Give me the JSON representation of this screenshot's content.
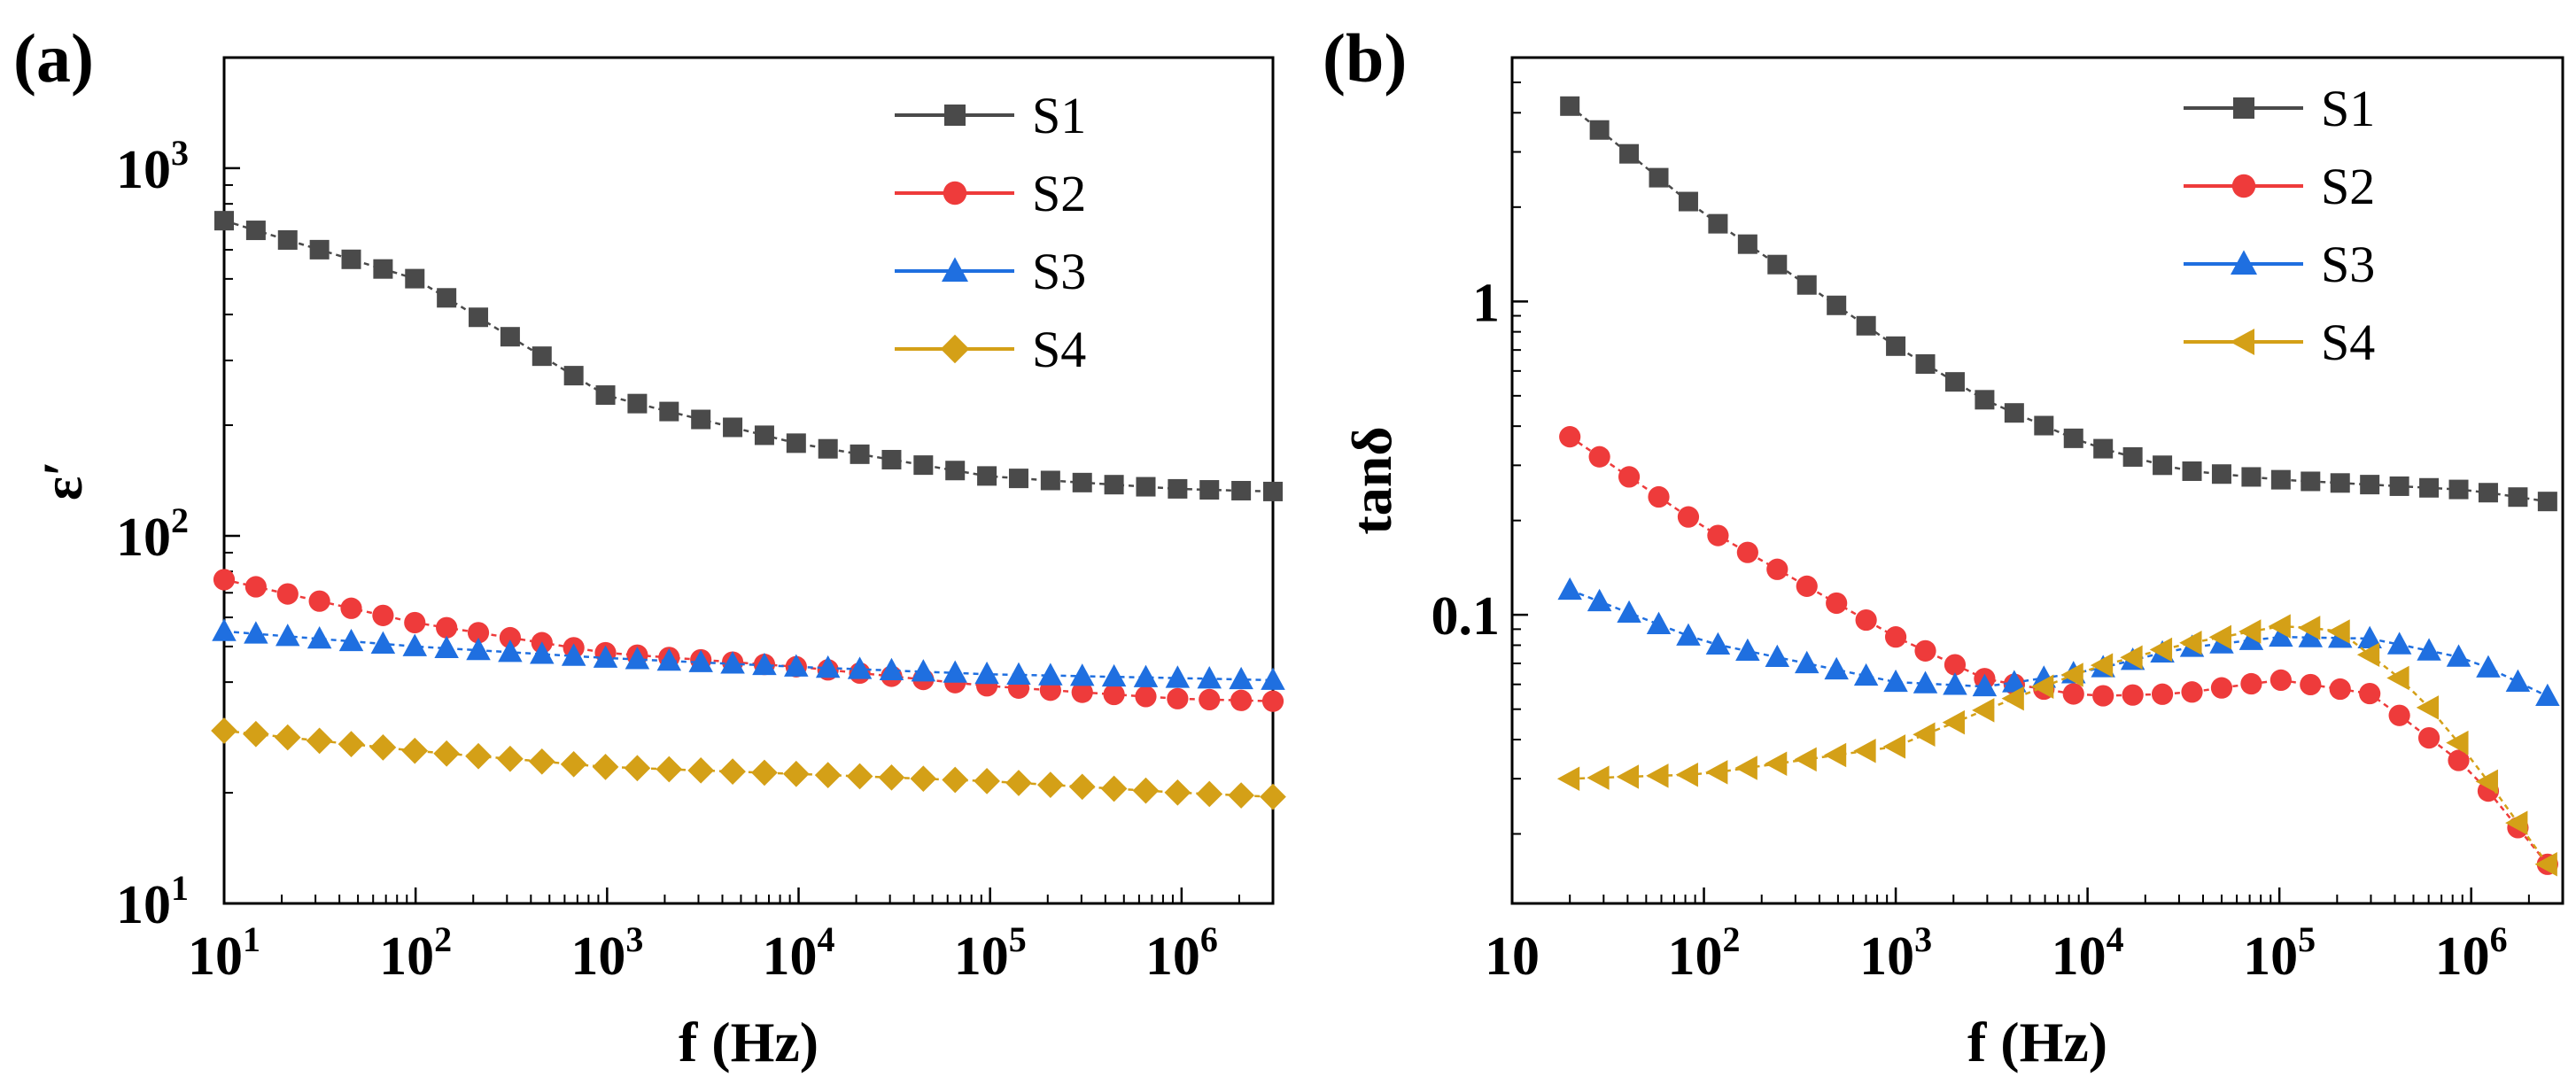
{
  "colors": {
    "S1": "#4a4a4a",
    "S2": "#ee3b3b",
    "S3": "#1f6fe0",
    "S4": "#d4a017"
  },
  "panels": {
    "a": {
      "label": "(a)"
    },
    "b": {
      "label": "(b)"
    }
  },
  "chart_data": [
    {
      "id": "a",
      "type": "line",
      "title": "(a)",
      "xlabel": "f (Hz)",
      "ylabel": "ε′",
      "xscale": "log",
      "yscale": "log",
      "xlim": [
        10,
        3000000
      ],
      "ylim": [
        10,
        2000
      ],
      "xticks": [
        {
          "value": 10,
          "base": "10",
          "exp": "1"
        },
        {
          "value": 100,
          "base": "10",
          "exp": "2"
        },
        {
          "value": 1000,
          "base": "10",
          "exp": "3"
        },
        {
          "value": 10000,
          "base": "10",
          "exp": "4"
        },
        {
          "value": 100000,
          "base": "10",
          "exp": "5"
        },
        {
          "value": 1000000,
          "base": "10",
          "exp": "6"
        }
      ],
      "yticks": [
        {
          "value": 10,
          "base": "10",
          "exp": "1"
        },
        {
          "value": 100,
          "base": "10",
          "exp": "2"
        },
        {
          "value": 1000,
          "base": "10",
          "exp": "3"
        }
      ],
      "legend_position": "top-right",
      "points_per_series": 34,
      "series": [
        {
          "name": "S1",
          "marker": "square",
          "points": [
            [
              10,
              720
            ],
            [
              100,
              500
            ],
            [
              1000,
              240
            ],
            [
              10000,
              178
            ],
            [
              100000,
              145
            ],
            [
              1000000,
              134
            ],
            [
              3000000,
              132
            ]
          ]
        },
        {
          "name": "S2",
          "marker": "circle",
          "points": [
            [
              10,
              76
            ],
            [
              100,
              58
            ],
            [
              1000,
              48
            ],
            [
              10000,
              44
            ],
            [
              100000,
              39
            ],
            [
              1000000,
              36
            ],
            [
              3000000,
              35.5
            ]
          ]
        },
        {
          "name": "S3",
          "marker": "triangle-up",
          "points": [
            [
              10,
              55
            ],
            [
              100,
              50
            ],
            [
              1000,
              46.5
            ],
            [
              10000,
              44
            ],
            [
              100000,
              42
            ],
            [
              1000000,
              41
            ],
            [
              3000000,
              40.5
            ]
          ]
        },
        {
          "name": "S4",
          "marker": "diamond",
          "points": [
            [
              10,
              29.5
            ],
            [
              100,
              26
            ],
            [
              1000,
              23.5
            ],
            [
              10000,
              22.5
            ],
            [
              100000,
              21.5
            ],
            [
              1000000,
              20
            ],
            [
              3000000,
              19.5
            ]
          ]
        }
      ]
    },
    {
      "id": "b",
      "type": "line",
      "title": "(b)",
      "xlabel": "f (Hz)",
      "ylabel": "tanδ",
      "xscale": "log",
      "yscale": "log",
      "xlim": [
        10,
        3000000
      ],
      "ylim": [
        0.012,
        6
      ],
      "xticks": [
        {
          "value": 10,
          "base": "10",
          "exp": ""
        },
        {
          "value": 100,
          "base": "10",
          "exp": "2"
        },
        {
          "value": 1000,
          "base": "10",
          "exp": "3"
        },
        {
          "value": 10000,
          "base": "10",
          "exp": "4"
        },
        {
          "value": 100000,
          "base": "10",
          "exp": "5"
        },
        {
          "value": 1000000,
          "base": "10",
          "exp": "6"
        }
      ],
      "yticks": [
        {
          "value": 0.1,
          "text": "0.1"
        },
        {
          "value": 1,
          "text": "1"
        }
      ],
      "legend_position": "top-right",
      "points_per_series": 34,
      "series": [
        {
          "name": "S1",
          "marker": "square",
          "points": [
            [
              20,
              4.2
            ],
            [
              100,
              1.9
            ],
            [
              1000,
              0.72
            ],
            [
              3000,
              0.48
            ],
            [
              10000,
              0.35
            ],
            [
              30000,
              0.29
            ],
            [
              100000,
              0.27
            ],
            [
              1000000,
              0.25
            ],
            [
              2500000,
              0.23
            ]
          ]
        },
        {
          "name": "S2",
          "marker": "circle",
          "points": [
            [
              20,
              0.37
            ],
            [
              100,
              0.19
            ],
            [
              1000,
              0.085
            ],
            [
              3000,
              0.062
            ],
            [
              10000,
              0.055
            ],
            [
              30000,
              0.056
            ],
            [
              100000,
              0.062
            ],
            [
              300000,
              0.056
            ],
            [
              1000000,
              0.032
            ],
            [
              2500000,
              0.016
            ]
          ]
        },
        {
          "name": "S3",
          "marker": "triangle-up",
          "points": [
            [
              20,
              0.12
            ],
            [
              100,
              0.082
            ],
            [
              1000,
              0.061
            ],
            [
              3000,
              0.059
            ],
            [
              10000,
              0.066
            ],
            [
              30000,
              0.078
            ],
            [
              100000,
              0.085
            ],
            [
              300000,
              0.084
            ],
            [
              1000000,
              0.072
            ],
            [
              2500000,
              0.055
            ]
          ]
        },
        {
          "name": "S4",
          "marker": "triangle-left",
          "points": [
            [
              20,
              0.03
            ],
            [
              100,
              0.031
            ],
            [
              1000,
              0.038
            ],
            [
              3000,
              0.05
            ],
            [
              10000,
              0.067
            ],
            [
              30000,
              0.08
            ],
            [
              100000,
              0.092
            ],
            [
              200000,
              0.09
            ],
            [
              500000,
              0.058
            ],
            [
              1000000,
              0.035
            ],
            [
              2500000,
              0.016
            ]
          ]
        }
      ]
    }
  ]
}
